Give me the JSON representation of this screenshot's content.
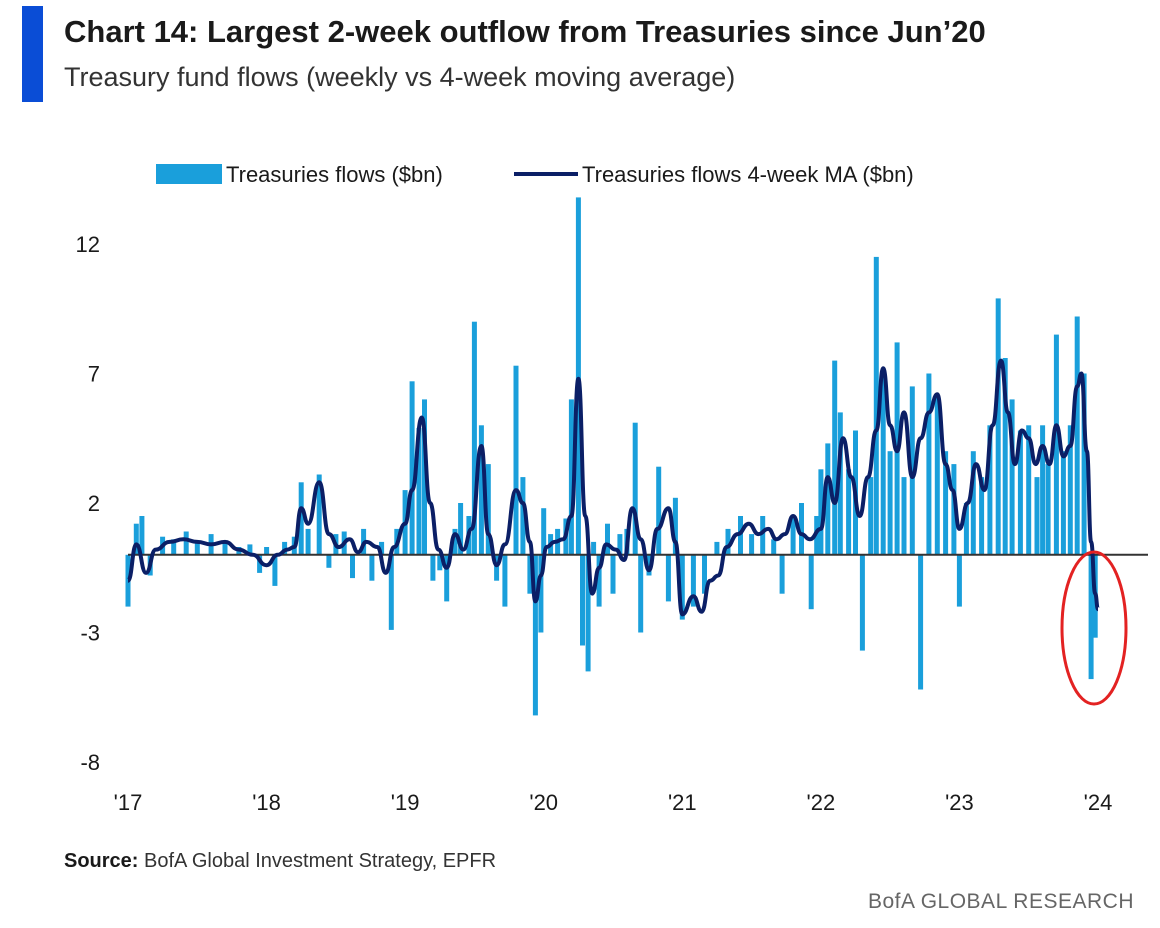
{
  "header": {
    "title": "Chart 14: Largest 2-week outflow from Treasuries since Jun’20",
    "subtitle": "Treasury fund flows (weekly vs 4-week moving average)"
  },
  "footer": {
    "source_label": "Source:",
    "source_text": "BofA Global Investment Strategy, EPFR",
    "branding": "BofA GLOBAL RESEARCH"
  },
  "colors": {
    "accent": "#0a4dd6",
    "bars": "#1a9fdb",
    "ma_line": "#0b1f66",
    "highlight_circle": "#e32222",
    "zero_line": "#333333"
  },
  "chart_data": {
    "type": "bar",
    "title": "",
    "xlabel": "",
    "ylabel": "",
    "ylim": [
      -8,
      14
    ],
    "yticks": [
      "12",
      "7",
      "2",
      "-3",
      "-8"
    ],
    "ytick_values": [
      12,
      7,
      2,
      -3,
      -8
    ],
    "xticks": [
      "'17",
      "'18",
      "'19",
      "'20",
      "'21",
      "'22",
      "'23",
      "'24"
    ],
    "xtick_values": [
      2017,
      2018,
      2019,
      2020,
      2021,
      2022,
      2023,
      2024
    ],
    "legend_position": "top",
    "grid": false,
    "annotation": "red circle highlighting the latest outflow at the end of 2023",
    "series": [
      {
        "name": "Treasuries flows ($bn)",
        "kind": "bar",
        "points": [
          [
            2017.0,
            -2.0
          ],
          [
            2017.06,
            1.2
          ],
          [
            2017.1,
            1.5
          ],
          [
            2017.16,
            -0.8
          ],
          [
            2017.25,
            0.7
          ],
          [
            2017.33,
            0.6
          ],
          [
            2017.42,
            0.9
          ],
          [
            2017.5,
            0.5
          ],
          [
            2017.6,
            0.8
          ],
          [
            2017.7,
            0.5
          ],
          [
            2017.8,
            0.3
          ],
          [
            2017.88,
            0.4
          ],
          [
            2017.95,
            -0.7
          ],
          [
            2018.0,
            0.3
          ],
          [
            2018.06,
            -1.2
          ],
          [
            2018.13,
            0.5
          ],
          [
            2018.2,
            0.7
          ],
          [
            2018.25,
            2.8
          ],
          [
            2018.3,
            1.0
          ],
          [
            2018.38,
            3.1
          ],
          [
            2018.45,
            -0.5
          ],
          [
            2018.5,
            0.8
          ],
          [
            2018.56,
            0.9
          ],
          [
            2018.62,
            -0.9
          ],
          [
            2018.7,
            1.0
          ],
          [
            2018.76,
            -1.0
          ],
          [
            2018.83,
            0.5
          ],
          [
            2018.9,
            -2.9
          ],
          [
            2018.94,
            1.0
          ],
          [
            2019.0,
            2.5
          ],
          [
            2019.05,
            6.7
          ],
          [
            2019.1,
            4.9
          ],
          [
            2019.14,
            6.0
          ],
          [
            2019.2,
            -1.0
          ],
          [
            2019.25,
            -0.6
          ],
          [
            2019.3,
            -1.8
          ],
          [
            2019.36,
            1.0
          ],
          [
            2019.4,
            2.0
          ],
          [
            2019.46,
            1.5
          ],
          [
            2019.5,
            9.0
          ],
          [
            2019.55,
            5.0
          ],
          [
            2019.6,
            3.5
          ],
          [
            2019.66,
            -1.0
          ],
          [
            2019.72,
            -2.0
          ],
          [
            2019.8,
            7.3
          ],
          [
            2019.85,
            3.0
          ],
          [
            2019.9,
            -1.5
          ],
          [
            2019.94,
            -6.2
          ],
          [
            2019.98,
            -3.0
          ],
          [
            2020.0,
            1.8
          ],
          [
            2020.05,
            0.8
          ],
          [
            2020.1,
            1.0
          ],
          [
            2020.16,
            1.4
          ],
          [
            2020.2,
            6.0
          ],
          [
            2020.25,
            13.8
          ],
          [
            2020.28,
            -3.5
          ],
          [
            2020.32,
            -4.5
          ],
          [
            2020.36,
            0.5
          ],
          [
            2020.4,
            -2.0
          ],
          [
            2020.46,
            1.2
          ],
          [
            2020.5,
            -1.5
          ],
          [
            2020.55,
            0.8
          ],
          [
            2020.6,
            1.0
          ],
          [
            2020.66,
            5.1
          ],
          [
            2020.7,
            -3.0
          ],
          [
            2020.76,
            -0.8
          ],
          [
            2020.83,
            3.4
          ],
          [
            2020.9,
            -1.8
          ],
          [
            2020.95,
            2.2
          ],
          [
            2021.0,
            -2.5
          ],
          [
            2021.08,
            -2.0
          ],
          [
            2021.16,
            -1.5
          ],
          [
            2021.25,
            0.5
          ],
          [
            2021.33,
            1.0
          ],
          [
            2021.42,
            1.5
          ],
          [
            2021.5,
            0.8
          ],
          [
            2021.58,
            1.5
          ],
          [
            2021.66,
            0.6
          ],
          [
            2021.72,
            -1.5
          ],
          [
            2021.8,
            1.5
          ],
          [
            2021.86,
            2.0
          ],
          [
            2021.93,
            -2.1
          ],
          [
            2021.97,
            1.5
          ],
          [
            2022.0,
            3.3
          ],
          [
            2022.05,
            4.3
          ],
          [
            2022.1,
            7.5
          ],
          [
            2022.14,
            5.5
          ],
          [
            2022.2,
            3.3
          ],
          [
            2022.25,
            4.8
          ],
          [
            2022.3,
            -3.7
          ],
          [
            2022.36,
            3.0
          ],
          [
            2022.4,
            11.5
          ],
          [
            2022.45,
            7.0
          ],
          [
            2022.5,
            4.0
          ],
          [
            2022.55,
            8.2
          ],
          [
            2022.6,
            3.0
          ],
          [
            2022.66,
            6.5
          ],
          [
            2022.72,
            -5.2
          ],
          [
            2022.78,
            7.0
          ],
          [
            2022.84,
            6.1
          ],
          [
            2022.9,
            4.0
          ],
          [
            2022.96,
            3.5
          ],
          [
            2023.0,
            -2.0
          ],
          [
            2023.05,
            2.0
          ],
          [
            2023.1,
            4.0
          ],
          [
            2023.16,
            3.0
          ],
          [
            2023.22,
            5.0
          ],
          [
            2023.28,
            9.9
          ],
          [
            2023.33,
            7.6
          ],
          [
            2023.38,
            6.0
          ],
          [
            2023.44,
            4.8
          ],
          [
            2023.5,
            5.0
          ],
          [
            2023.56,
            3.0
          ],
          [
            2023.6,
            5.0
          ],
          [
            2023.64,
            3.5
          ],
          [
            2023.7,
            8.5
          ],
          [
            2023.75,
            4.0
          ],
          [
            2023.8,
            5.0
          ],
          [
            2023.85,
            9.2
          ],
          [
            2023.9,
            7.0
          ],
          [
            2023.95,
            -4.8
          ],
          [
            2023.98,
            -3.2
          ]
        ]
      },
      {
        "name": "Treasuries flows 4-week MA ($bn)",
        "kind": "line",
        "points": [
          [
            2017.0,
            -1.0
          ],
          [
            2017.06,
            0.4
          ],
          [
            2017.13,
            -0.7
          ],
          [
            2017.2,
            0.2
          ],
          [
            2017.3,
            0.5
          ],
          [
            2017.4,
            0.6
          ],
          [
            2017.5,
            0.5
          ],
          [
            2017.6,
            0.4
          ],
          [
            2017.7,
            0.5
          ],
          [
            2017.8,
            0.2
          ],
          [
            2017.9,
            0.0
          ],
          [
            2018.0,
            -0.4
          ],
          [
            2018.08,
            0.0
          ],
          [
            2018.15,
            0.2
          ],
          [
            2018.2,
            0.3
          ],
          [
            2018.25,
            1.8
          ],
          [
            2018.3,
            1.2
          ],
          [
            2018.38,
            2.8
          ],
          [
            2018.45,
            0.8
          ],
          [
            2018.52,
            0.3
          ],
          [
            2018.6,
            0.6
          ],
          [
            2018.66,
            0.1
          ],
          [
            2018.72,
            0.5
          ],
          [
            2018.8,
            0.3
          ],
          [
            2018.86,
            -0.7
          ],
          [
            2018.92,
            0.3
          ],
          [
            2019.0,
            1.2
          ],
          [
            2019.05,
            2.5
          ],
          [
            2019.12,
            5.3
          ],
          [
            2019.18,
            2.0
          ],
          [
            2019.24,
            0.2
          ],
          [
            2019.3,
            -0.5
          ],
          [
            2019.36,
            0.8
          ],
          [
            2019.42,
            0.2
          ],
          [
            2019.48,
            1.0
          ],
          [
            2019.55,
            4.2
          ],
          [
            2019.6,
            0.8
          ],
          [
            2019.66,
            -0.4
          ],
          [
            2019.72,
            0.4
          ],
          [
            2019.8,
            2.5
          ],
          [
            2019.85,
            2.0
          ],
          [
            2019.9,
            0.5
          ],
          [
            2019.94,
            -1.8
          ],
          [
            2019.98,
            -0.8
          ],
          [
            2020.02,
            0.3
          ],
          [
            2020.08,
            0.5
          ],
          [
            2020.14,
            0.6
          ],
          [
            2020.2,
            1.5
          ],
          [
            2020.25,
            6.8
          ],
          [
            2020.3,
            1.5
          ],
          [
            2020.35,
            -1.5
          ],
          [
            2020.4,
            -0.5
          ],
          [
            2020.45,
            0.4
          ],
          [
            2020.52,
            0.2
          ],
          [
            2020.58,
            -0.2
          ],
          [
            2020.64,
            1.8
          ],
          [
            2020.7,
            0.6
          ],
          [
            2020.76,
            -0.6
          ],
          [
            2020.82,
            1.0
          ],
          [
            2020.9,
            1.8
          ],
          [
            2020.95,
            0.5
          ],
          [
            2021.0,
            -2.3
          ],
          [
            2021.08,
            -1.6
          ],
          [
            2021.14,
            -2.2
          ],
          [
            2021.2,
            -1.0
          ],
          [
            2021.26,
            -0.8
          ],
          [
            2021.32,
            0.3
          ],
          [
            2021.4,
            0.8
          ],
          [
            2021.48,
            1.2
          ],
          [
            2021.55,
            0.8
          ],
          [
            2021.62,
            1.0
          ],
          [
            2021.68,
            0.6
          ],
          [
            2021.74,
            0.8
          ],
          [
            2021.8,
            1.5
          ],
          [
            2021.86,
            0.8
          ],
          [
            2021.92,
            0.6
          ],
          [
            2022.0,
            1.0
          ],
          [
            2022.05,
            3.0
          ],
          [
            2022.1,
            2.0
          ],
          [
            2022.16,
            4.5
          ],
          [
            2022.22,
            3.0
          ],
          [
            2022.28,
            1.5
          ],
          [
            2022.34,
            3.0
          ],
          [
            2022.4,
            4.8
          ],
          [
            2022.45,
            7.2
          ],
          [
            2022.5,
            5.0
          ],
          [
            2022.55,
            4.0
          ],
          [
            2022.6,
            5.5
          ],
          [
            2022.66,
            3.0
          ],
          [
            2022.72,
            4.5
          ],
          [
            2022.78,
            5.5
          ],
          [
            2022.84,
            6.2
          ],
          [
            2022.9,
            3.5
          ],
          [
            2022.95,
            2.5
          ],
          [
            2023.0,
            1.0
          ],
          [
            2023.06,
            2.0
          ],
          [
            2023.12,
            3.5
          ],
          [
            2023.18,
            2.5
          ],
          [
            2023.24,
            5.0
          ],
          [
            2023.3,
            7.5
          ],
          [
            2023.35,
            5.5
          ],
          [
            2023.4,
            3.5
          ],
          [
            2023.45,
            4.8
          ],
          [
            2023.5,
            4.5
          ],
          [
            2023.55,
            3.5
          ],
          [
            2023.6,
            4.2
          ],
          [
            2023.65,
            3.5
          ],
          [
            2023.7,
            5.0
          ],
          [
            2023.75,
            3.8
          ],
          [
            2023.8,
            4.2
          ],
          [
            2023.85,
            6.5
          ],
          [
            2023.88,
            7.0
          ],
          [
            2023.92,
            4.0
          ],
          [
            2023.95,
            0.5
          ],
          [
            2023.98,
            -1.5
          ],
          [
            2024.0,
            -2.1
          ]
        ]
      }
    ]
  }
}
